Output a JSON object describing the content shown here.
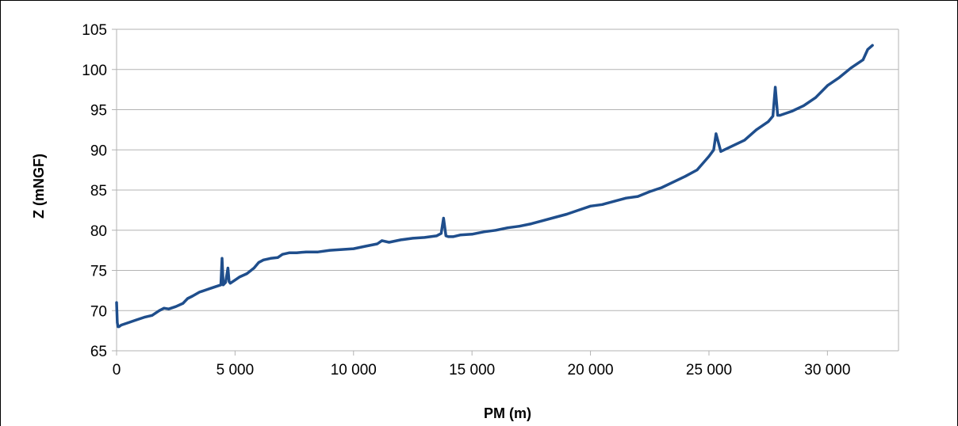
{
  "chart_data": {
    "type": "line",
    "xlabel": "PM (m)",
    "ylabel": "Z (mNGF)",
    "xlim": [
      0,
      33000
    ],
    "ylim": [
      65,
      105
    ],
    "x_ticks": [
      0,
      5000,
      10000,
      15000,
      20000,
      25000,
      30000
    ],
    "x_tick_labels": [
      "0",
      "5 000",
      "10 000",
      "15 000",
      "20 000",
      "25 000",
      "30 000"
    ],
    "y_ticks": [
      65,
      70,
      75,
      80,
      85,
      90,
      95,
      100,
      105
    ],
    "y_tick_labels": [
      "65",
      "70",
      "75",
      "80",
      "85",
      "90",
      "95",
      "100",
      "105"
    ],
    "grid": "horizontal",
    "legend": "none",
    "series": [
      {
        "color": "#1f4e8c",
        "x": [
          0,
          30,
          60,
          100,
          200,
          500,
          800,
          1000,
          1200,
          1500,
          1800,
          2000,
          2200,
          2500,
          2800,
          3000,
          3200,
          3500,
          3800,
          4000,
          4200,
          4400,
          4450,
          4500,
          4600,
          4700,
          4750,
          4800,
          5000,
          5200,
          5500,
          5800,
          6000,
          6200,
          6500,
          6800,
          7000,
          7300,
          7600,
          8000,
          8500,
          9000,
          9500,
          10000,
          10500,
          11000,
          11200,
          11500,
          12000,
          12500,
          13000,
          13500,
          13700,
          13800,
          13900,
          14000,
          14200,
          14500,
          15000,
          15500,
          16000,
          16500,
          17000,
          17500,
          18000,
          18500,
          19000,
          19500,
          20000,
          20500,
          21000,
          21500,
          22000,
          22500,
          23000,
          23500,
          24000,
          24500,
          25000,
          25200,
          25300,
          25500,
          26000,
          26500,
          27000,
          27500,
          27700,
          27800,
          27900,
          28000,
          28500,
          29000,
          29500,
          30000,
          30500,
          31000,
          31500,
          31700,
          31900
        ],
        "y": [
          71,
          68.5,
          68,
          68,
          68.2,
          68.5,
          68.8,
          69,
          69.2,
          69.4,
          70,
          70.3,
          70.2,
          70.5,
          70.9,
          71.5,
          71.8,
          72.3,
          72.6,
          72.8,
          73,
          73.2,
          76.5,
          73.2,
          73.5,
          75.3,
          73.6,
          73.4,
          73.8,
          74.2,
          74.6,
          75.3,
          76,
          76.3,
          76.5,
          76.6,
          77,
          77.2,
          77.2,
          77.3,
          77.3,
          77.5,
          77.6,
          77.7,
          78,
          78.3,
          78.7,
          78.5,
          78.8,
          79,
          79.1,
          79.3,
          79.6,
          81.5,
          79.3,
          79.2,
          79.2,
          79.4,
          79.5,
          79.8,
          80,
          80.3,
          80.5,
          80.8,
          81.2,
          81.6,
          82,
          82.5,
          83,
          83.2,
          83.6,
          84,
          84.2,
          84.8,
          85.3,
          86,
          86.7,
          87.5,
          89.2,
          90,
          92,
          89.8,
          90.5,
          91.2,
          92.5,
          93.5,
          94.2,
          97.8,
          94.3,
          94.3,
          94.8,
          95.5,
          96.5,
          98,
          99,
          100.2,
          101.2,
          102.5,
          103
        ]
      }
    ]
  }
}
